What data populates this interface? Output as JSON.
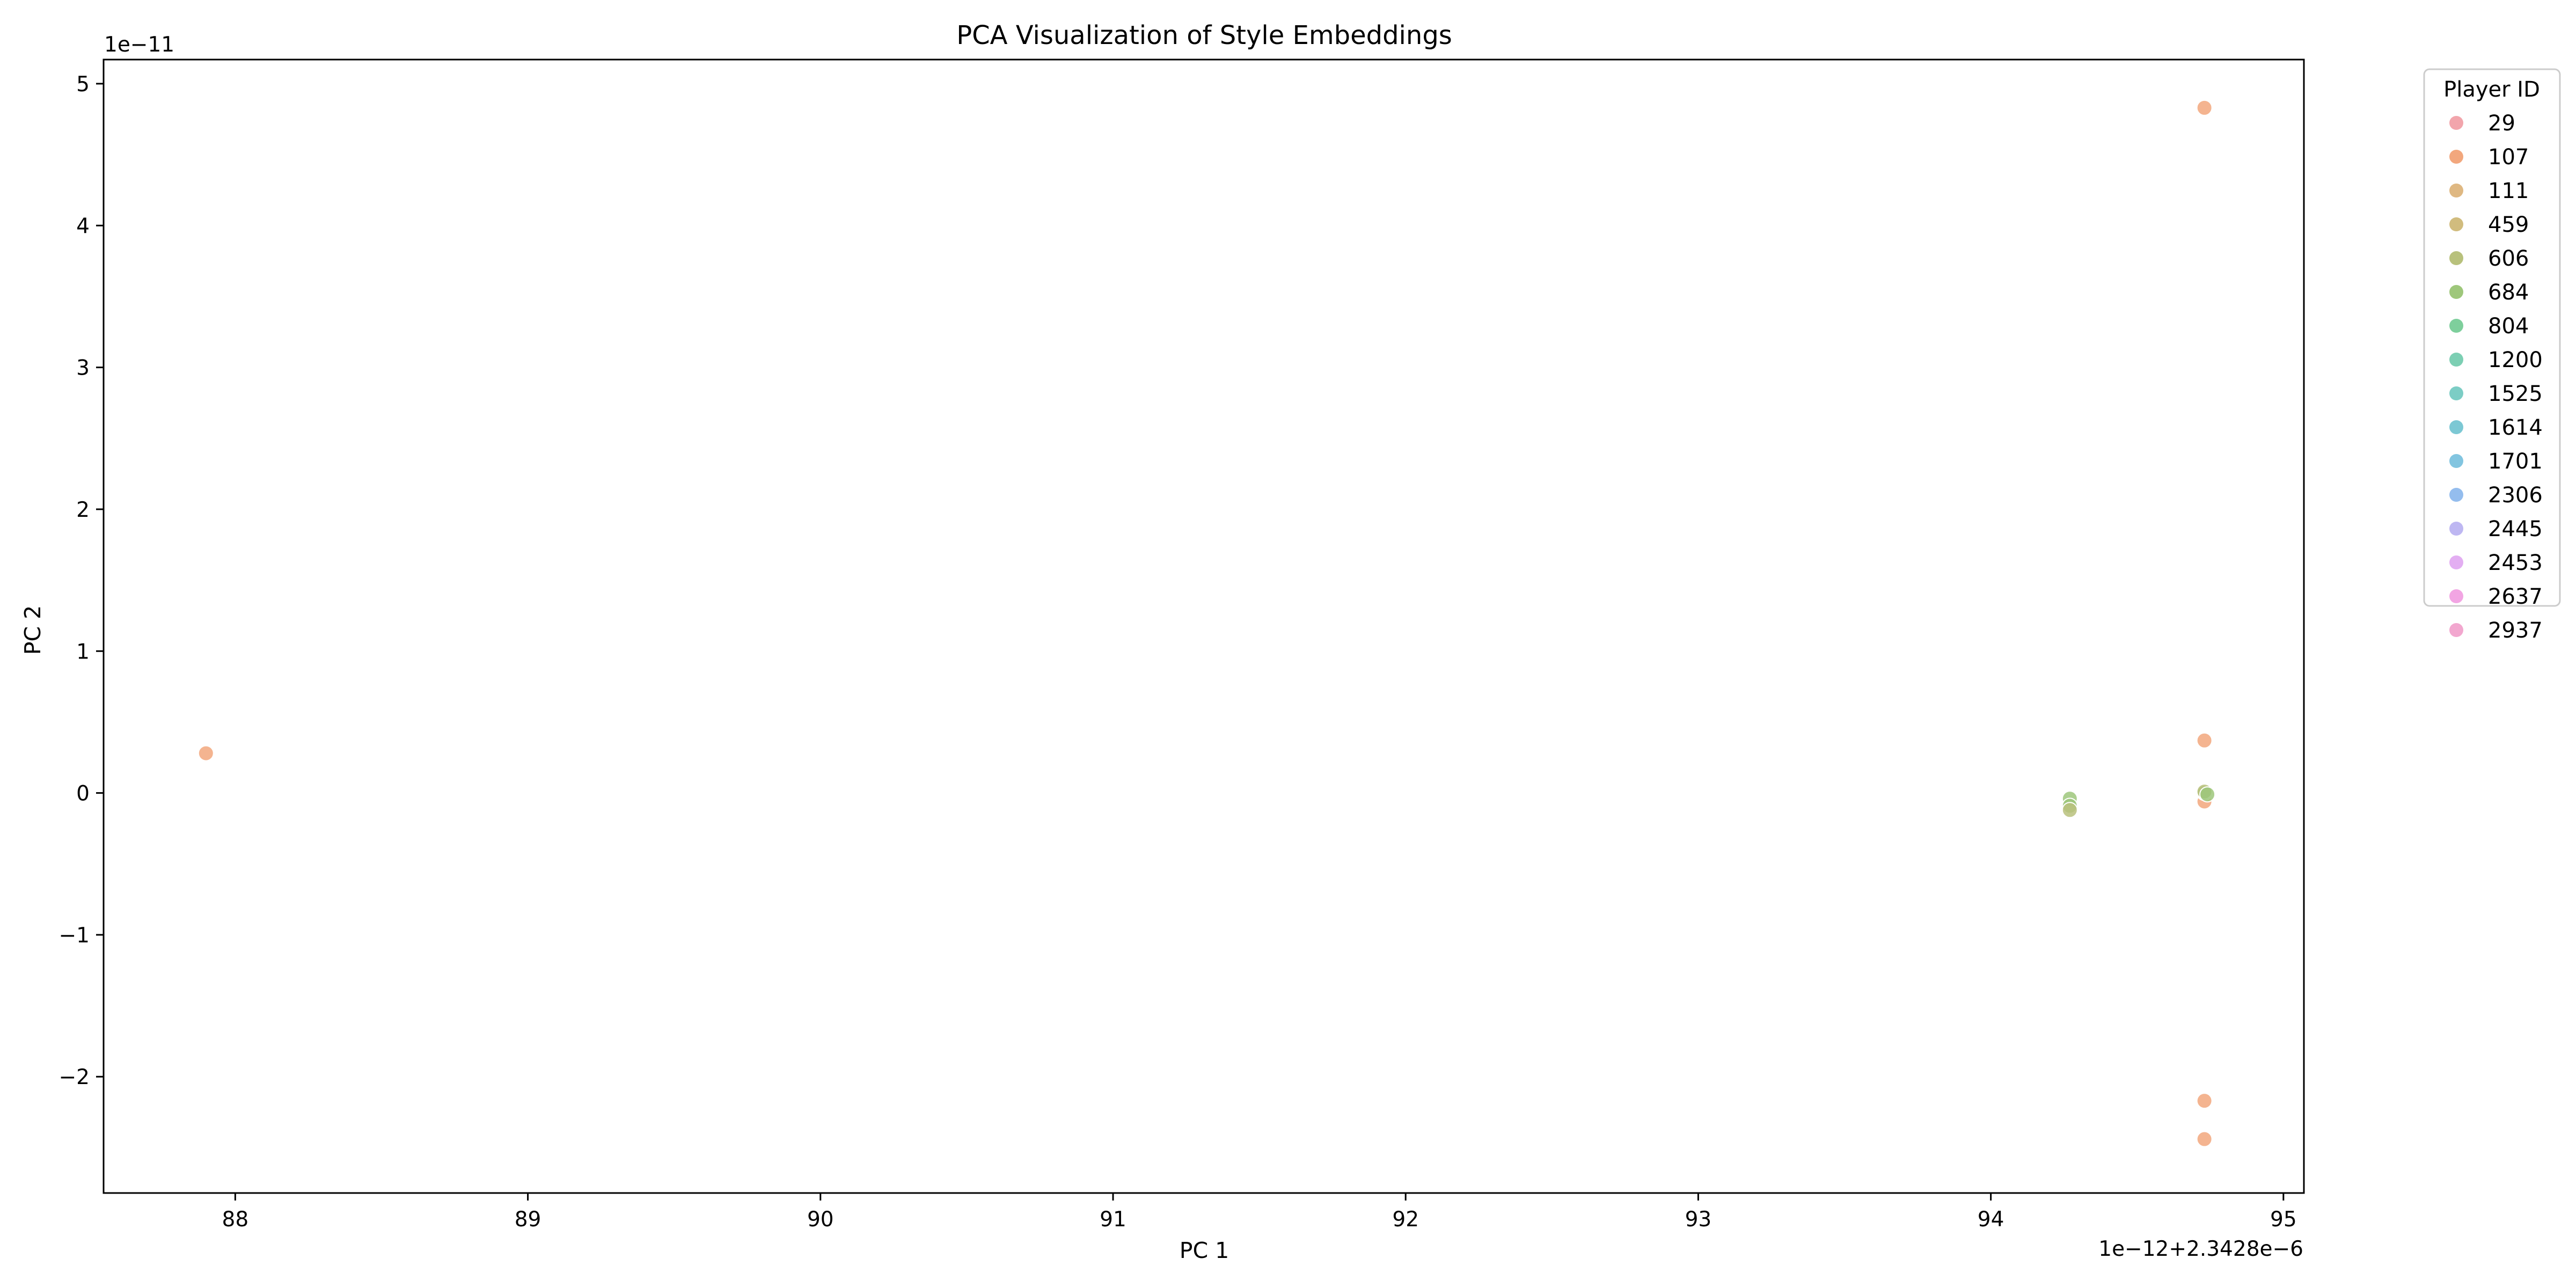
{
  "chart_data": {
    "type": "scatter",
    "title": "PCA Visualization of Style Embeddings",
    "xlabel": "PC 1",
    "ylabel": "PC 2",
    "x_offset_label": "1e−12+2.3428e−6",
    "y_offset_label": "1e−11",
    "xlim": [
      87.55,
      95.07
    ],
    "ylim": [
      -2.82,
      5.17
    ],
    "x_ticks": [
      88,
      89,
      90,
      91,
      92,
      93,
      94,
      95
    ],
    "x_tick_labels": [
      "88",
      "89",
      "90",
      "91",
      "92",
      "93",
      "94",
      "95"
    ],
    "y_ticks": [
      -2,
      -1,
      0,
      1,
      2,
      3,
      4,
      5
    ],
    "y_tick_labels": [
      "−2",
      "−1",
      "0",
      "1",
      "2",
      "3",
      "4",
      "5"
    ],
    "grid": false,
    "legend": {
      "title": "Player ID",
      "placement": "outside-top-right",
      "entries": [
        {
          "name": "29",
          "color": "#f2a5ac"
        },
        {
          "name": "107",
          "color": "#f2a77d"
        },
        {
          "name": "111",
          "color": "#dfb882"
        },
        {
          "name": "459",
          "color": "#d1bc7e"
        },
        {
          "name": "606",
          "color": "#b8c17c"
        },
        {
          "name": "684",
          "color": "#9ec77b"
        },
        {
          "name": "804",
          "color": "#7ecf9c"
        },
        {
          "name": "1200",
          "color": "#7ccfb3"
        },
        {
          "name": "1525",
          "color": "#7ccdc5"
        },
        {
          "name": "1614",
          "color": "#7cc8d4"
        },
        {
          "name": "1701",
          "color": "#82c5e0"
        },
        {
          "name": "2306",
          "color": "#94bdee"
        },
        {
          "name": "2445",
          "color": "#beb7f2"
        },
        {
          "name": "2453",
          "color": "#e3aef2"
        },
        {
          "name": "2637",
          "color": "#f2a5e3"
        },
        {
          "name": "2937",
          "color": "#f2a7cf"
        }
      ]
    },
    "points": [
      {
        "series": "107",
        "x": 87.9,
        "y": 0.28
      },
      {
        "series": "107",
        "x": 94.73,
        "y": 4.83
      },
      {
        "series": "107",
        "x": 94.73,
        "y": 0.37
      },
      {
        "series": "107",
        "x": 94.73,
        "y": -0.06
      },
      {
        "series": "107",
        "x": 94.73,
        "y": -2.17
      },
      {
        "series": "107",
        "x": 94.73,
        "y": -2.44
      },
      {
        "series": "684",
        "x": 94.27,
        "y": -0.04
      },
      {
        "series": "684",
        "x": 94.27,
        "y": -0.09
      },
      {
        "series": "606",
        "x": 94.27,
        "y": -0.12
      },
      {
        "series": "684",
        "x": 94.73,
        "y": 0.0
      },
      {
        "series": "606",
        "x": 94.73,
        "y": 0.01
      },
      {
        "series": "684",
        "x": 94.74,
        "y": -0.01
      }
    ],
    "colors": {
      "axis": "#000000",
      "background": "#ffffff",
      "legend_border": "#cccccc"
    }
  }
}
